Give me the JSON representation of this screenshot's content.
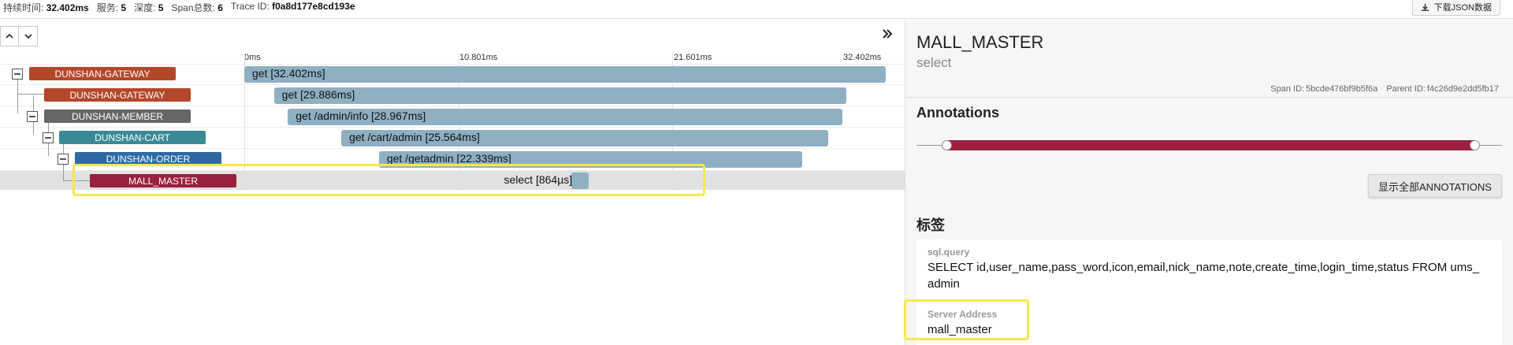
{
  "topbar": {
    "duration_label": "持续时间:",
    "duration_value": "32.402ms",
    "services_label": "服务:",
    "services_value": "5",
    "depth_label": "深度:",
    "depth_value": "5",
    "spans_label": "Span总数:",
    "spans_value": "6",
    "trace_label": "Trace ID:",
    "trace_value": "f0a8d177e8cd193e",
    "download_label": "下载JSON数据",
    "download_icon": "download-icon"
  },
  "timeline": {
    "nav_icons": [
      "chevron-up-icon",
      "chevron-down-icon"
    ],
    "collapse_icon": "double-chevron-right-icon",
    "ticks": [
      "0ms",
      "10.801ms",
      "21.601ms",
      "32.402ms"
    ],
    "spans": [
      {
        "service": "DUNSHAN-GATEWAY",
        "color": "#b4472a",
        "label": "get [32.402ms]",
        "start_ms": 0,
        "duration_ms": 32.402
      },
      {
        "service": "DUNSHAN-GATEWAY",
        "color": "#b4472a",
        "label": "get [29.886ms]",
        "start_ms": 1.5,
        "duration_ms": 29.886
      },
      {
        "service": "DUNSHAN-MEMBER",
        "color": "#666666",
        "label": "get /admin/info [28.967ms]",
        "start_ms": 2.2,
        "duration_ms": 28.967
      },
      {
        "service": "DUNSHAN-CART",
        "color": "#3a8a96",
        "label": "get /cart/admin [25.564ms]",
        "start_ms": 4.9,
        "duration_ms": 25.564
      },
      {
        "service": "DUNSHAN-ORDER",
        "color": "#2d6aa4",
        "label": "get /getadmin [22.339ms]",
        "start_ms": 6.8,
        "duration_ms": 22.339
      },
      {
        "service": "MALL_MASTER",
        "color": "#99203f",
        "label": "select [864µs]",
        "start_ms": 16.5,
        "duration_ms": 0.864
      }
    ]
  },
  "detail": {
    "service_name": "MALL_MASTER",
    "span_name": "select",
    "span_id_label": "Span ID:",
    "span_id": "5bcde476bf9b5f6a",
    "parent_id_label": "Parent ID:",
    "parent_id": "f4c26d9e2dd5fb17",
    "annotations_title": "Annotations",
    "annotation_color": "#99203f",
    "show_all_label": "显示全部ANNOTATIONS",
    "tags_title": "标签",
    "tags": [
      {
        "key": "sql.query",
        "value": "SELECT id,user_name,pass_word,icon,email,nick_name,note,create_time,login_time,status FROM ums_ admin"
      },
      {
        "key": "Server Address",
        "value": "mall_master"
      }
    ]
  }
}
